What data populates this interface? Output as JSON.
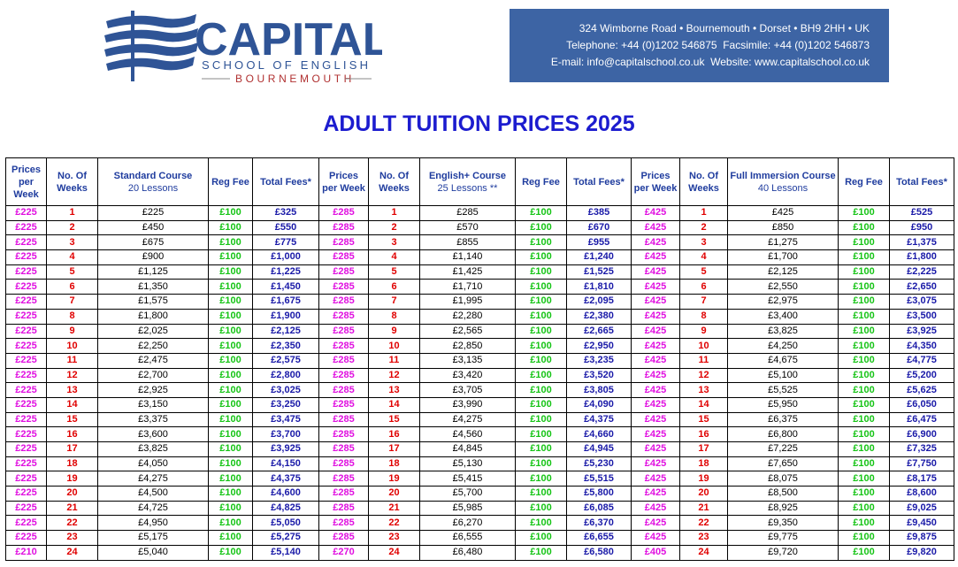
{
  "logo": {
    "name": "CAPITAL",
    "line1": "SCHOOL OF ENGLISH",
    "line2": "BOURNEMOUTH"
  },
  "contact": [
    "324 Wimborne Road • Bournemouth • Dorset • BH9 2HH • UK",
    "Telephone: +44 (0)1202 546875  Facsimile: +44 (0)1202 546873",
    "E-mail: info@capitalschool.co.uk  Website: www.capitalschool.co.uk"
  ],
  "title": "ADULT TUITION PRICES 2025",
  "table": {
    "header": [
      {
        "title": "Prices per Week"
      },
      {
        "title": "No. Of Weeks"
      },
      {
        "title": "Standard Course",
        "sub": "20 Lessons"
      },
      {
        "title": "Reg Fee"
      },
      {
        "title": "Total Fees*"
      },
      {
        "title": "Prices per Week"
      },
      {
        "title": "No. Of Weeks"
      },
      {
        "title": "English+ Course",
        "sub": "25 Lessons **"
      },
      {
        "title": "Reg Fee"
      },
      {
        "title": "Total Fees*"
      },
      {
        "title": "Prices per Week"
      },
      {
        "title": "No. Of Weeks"
      },
      {
        "title": "Full Immersion Course",
        "sub": "40 Lessons"
      },
      {
        "title": "Reg Fee"
      },
      {
        "title": "Total Fees*"
      }
    ],
    "rows": [
      [
        "£225",
        "1",
        "£225",
        "£100",
        "£325",
        "£285",
        "1",
        "£285",
        "£100",
        "£385",
        "£425",
        "1",
        "£425",
        "£100",
        "£525"
      ],
      [
        "£225",
        "2",
        "£450",
        "£100",
        "£550",
        "£285",
        "2",
        "£570",
        "£100",
        "£670",
        "£425",
        "2",
        "£850",
        "£100",
        "£950"
      ],
      [
        "£225",
        "3",
        "£675",
        "£100",
        "£775",
        "£285",
        "3",
        "£855",
        "£100",
        "£955",
        "£425",
        "3",
        "£1,275",
        "£100",
        "£1,375"
      ],
      [
        "£225",
        "4",
        "£900",
        "£100",
        "£1,000",
        "£285",
        "4",
        "£1,140",
        "£100",
        "£1,240",
        "£425",
        "4",
        "£1,700",
        "£100",
        "£1,800"
      ],
      [
        "£225",
        "5",
        "£1,125",
        "£100",
        "£1,225",
        "£285",
        "5",
        "£1,425",
        "£100",
        "£1,525",
        "£425",
        "5",
        "£2,125",
        "£100",
        "£2,225"
      ],
      [
        "£225",
        "6",
        "£1,350",
        "£100",
        "£1,450",
        "£285",
        "6",
        "£1,710",
        "£100",
        "£1,810",
        "£425",
        "6",
        "£2,550",
        "£100",
        "£2,650"
      ],
      [
        "£225",
        "7",
        "£1,575",
        "£100",
        "£1,675",
        "£285",
        "7",
        "£1,995",
        "£100",
        "£2,095",
        "£425",
        "7",
        "£2,975",
        "£100",
        "£3,075"
      ],
      [
        "£225",
        "8",
        "£1,800",
        "£100",
        "£1,900",
        "£285",
        "8",
        "£2,280",
        "£100",
        "£2,380",
        "£425",
        "8",
        "£3,400",
        "£100",
        "£3,500"
      ],
      [
        "£225",
        "9",
        "£2,025",
        "£100",
        "£2,125",
        "£285",
        "9",
        "£2,565",
        "£100",
        "£2,665",
        "£425",
        "9",
        "£3,825",
        "£100",
        "£3,925"
      ],
      [
        "£225",
        "10",
        "£2,250",
        "£100",
        "£2,350",
        "£285",
        "10",
        "£2,850",
        "£100",
        "£2,950",
        "£425",
        "10",
        "£4,250",
        "£100",
        "£4,350"
      ],
      [
        "£225",
        "11",
        "£2,475",
        "£100",
        "£2,575",
        "£285",
        "11",
        "£3,135",
        "£100",
        "£3,235",
        "£425",
        "11",
        "£4,675",
        "£100",
        "£4,775"
      ],
      [
        "£225",
        "12",
        "£2,700",
        "£100",
        "£2,800",
        "£285",
        "12",
        "£3,420",
        "£100",
        "£3,520",
        "£425",
        "12",
        "£5,100",
        "£100",
        "£5,200"
      ],
      [
        "£225",
        "13",
        "£2,925",
        "£100",
        "£3,025",
        "£285",
        "13",
        "£3,705",
        "£100",
        "£3,805",
        "£425",
        "13",
        "£5,525",
        "£100",
        "£5,625"
      ],
      [
        "£225",
        "14",
        "£3,150",
        "£100",
        "£3,250",
        "£285",
        "14",
        "£3,990",
        "£100",
        "£4,090",
        "£425",
        "14",
        "£5,950",
        "£100",
        "£6,050"
      ],
      [
        "£225",
        "15",
        "£3,375",
        "£100",
        "£3,475",
        "£285",
        "15",
        "£4,275",
        "£100",
        "£4,375",
        "£425",
        "15",
        "£6,375",
        "£100",
        "£6,475"
      ],
      [
        "£225",
        "16",
        "£3,600",
        "£100",
        "£3,700",
        "£285",
        "16",
        "£4,560",
        "£100",
        "£4,660",
        "£425",
        "16",
        "£6,800",
        "£100",
        "£6,900"
      ],
      [
        "£225",
        "17",
        "£3,825",
        "£100",
        "£3,925",
        "£285",
        "17",
        "£4,845",
        "£100",
        "£4,945",
        "£425",
        "17",
        "£7,225",
        "£100",
        "£7,325"
      ],
      [
        "£225",
        "18",
        "£4,050",
        "£100",
        "£4,150",
        "£285",
        "18",
        "£5,130",
        "£100",
        "£5,230",
        "£425",
        "18",
        "£7,650",
        "£100",
        "£7,750"
      ],
      [
        "£225",
        "19",
        "£4,275",
        "£100",
        "£4,375",
        "£285",
        "19",
        "£5,415",
        "£100",
        "£5,515",
        "£425",
        "19",
        "£8,075",
        "£100",
        "£8,175"
      ],
      [
        "£225",
        "20",
        "£4,500",
        "£100",
        "£4,600",
        "£285",
        "20",
        "£5,700",
        "£100",
        "£5,800",
        "£425",
        "20",
        "£8,500",
        "£100",
        "£8,600"
      ],
      [
        "£225",
        "21",
        "£4,725",
        "£100",
        "£4,825",
        "£285",
        "21",
        "£5,985",
        "£100",
        "£6,085",
        "£425",
        "21",
        "£8,925",
        "£100",
        "£9,025"
      ],
      [
        "£225",
        "22",
        "£4,950",
        "£100",
        "£5,050",
        "£285",
        "22",
        "£6,270",
        "£100",
        "£6,370",
        "£425",
        "22",
        "£9,350",
        "£100",
        "£9,450"
      ],
      [
        "£225",
        "23",
        "£5,175",
        "£100",
        "£5,275",
        "£285",
        "23",
        "£6,555",
        "£100",
        "£6,655",
        "£425",
        "23",
        "£9,775",
        "£100",
        "£9,875"
      ],
      [
        "£210",
        "24",
        "£5,040",
        "£100",
        "£5,140",
        "£270",
        "24",
        "£6,480",
        "£100",
        "£6,580",
        "£405",
        "24",
        "£9,720",
        "£100",
        "£9,820"
      ]
    ]
  }
}
